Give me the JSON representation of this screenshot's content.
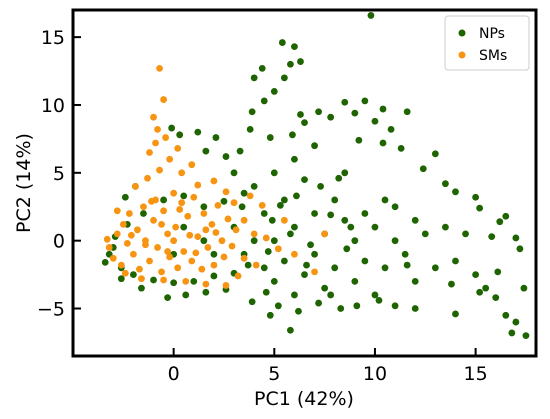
{
  "chart_data": {
    "type": "scatter",
    "title": "",
    "xlabel": "PC1 (42%)",
    "ylabel": "PC2 (14%)",
    "xlim": [
      -5,
      18
    ],
    "ylim": [
      -8.5,
      17
    ],
    "xticks": [
      0,
      5,
      10,
      15
    ],
    "yticks": [
      -5,
      0,
      5,
      10,
      15
    ],
    "xtick_labels": [
      "0",
      "5",
      "10",
      "15"
    ],
    "ytick_labels": [
      "−5",
      "0",
      "5",
      "10",
      "15"
    ],
    "grid": false,
    "legend_position": "top-right",
    "series": [
      {
        "name": "NPs",
        "color": "#1e6400",
        "points": [
          [
            -3.2,
            -1.0
          ],
          [
            -3.0,
            -0.5
          ],
          [
            -3.4,
            -1.6
          ],
          [
            -2.9,
            0.3
          ],
          [
            -2.6,
            -2.0
          ],
          [
            -2.3,
            1.2
          ],
          [
            -2.0,
            -2.5
          ],
          [
            -1.5,
            2.0
          ],
          [
            -1.0,
            -2.9
          ],
          [
            -0.5,
            3.0
          ],
          [
            0.0,
            -3.1
          ],
          [
            0.5,
            3.3
          ],
          [
            1.0,
            -3.0
          ],
          [
            1.5,
            2.5
          ],
          [
            2.0,
            -2.6
          ],
          [
            2.5,
            2.9
          ],
          [
            3.0,
            -2.4
          ],
          [
            3.5,
            3.5
          ],
          [
            3.0,
            1.0
          ],
          [
            3.5,
            -1.0
          ],
          [
            4.0,
            0.0
          ],
          [
            4.0,
            4.0
          ],
          [
            4.5,
            -2.0
          ],
          [
            4.5,
            2.0
          ],
          [
            5.0,
            5.0
          ],
          [
            5.0,
            0.0
          ],
          [
            5.0,
            -3.0
          ],
          [
            5.5,
            3.0
          ],
          [
            5.5,
            -1.5
          ],
          [
            6.0,
            6.0
          ],
          [
            6.0,
            1.0
          ],
          [
            6.0,
            -4.0
          ],
          [
            6.5,
            4.5
          ],
          [
            6.5,
            -2.5
          ],
          [
            7.0,
            2.0
          ],
          [
            7.0,
            -1.0
          ],
          [
            7.0,
            7.0
          ],
          [
            7.5,
            0.5
          ],
          [
            7.5,
            -3.5
          ],
          [
            8.0,
            3.0
          ],
          [
            8.0,
            -2.0
          ],
          [
            8.5,
            1.5
          ],
          [
            8.5,
            5.0
          ],
          [
            9.0,
            0.0
          ],
          [
            9.0,
            -3.0
          ],
          [
            9.5,
            2.0
          ],
          [
            9.5,
            -1.5
          ],
          [
            10.0,
            1.0
          ],
          [
            10.0,
            -4.0
          ],
          [
            10.5,
            3.0
          ],
          [
            10.5,
            -2.0
          ],
          [
            11.0,
            0.0
          ],
          [
            11.0,
            2.5
          ],
          [
            11.5,
            -1.0
          ],
          [
            12.0,
            1.5
          ],
          [
            12.0,
            -3.0
          ],
          [
            12.5,
            0.5
          ],
          [
            13.0,
            -2.0
          ],
          [
            13.5,
            1.0
          ],
          [
            14.0,
            -1.5
          ],
          [
            14.5,
            0.5
          ],
          [
            15.0,
            -2.5
          ],
          [
            15.5,
            -3.5
          ],
          [
            16.0,
            -4.2
          ],
          [
            16.5,
            -5.5
          ],
          [
            17.0,
            -6.0
          ],
          [
            17.5,
            -7.0
          ],
          [
            16.8,
            -6.8
          ],
          [
            15.2,
            -3.8
          ],
          [
            13.8,
            -3.2
          ],
          [
            3.9,
            -4.5
          ],
          [
            4.8,
            -5.5
          ],
          [
            5.2,
            -4.8
          ],
          [
            5.8,
            -6.6
          ],
          [
            6.2,
            -5.2
          ],
          [
            7.2,
            -4.6
          ],
          [
            8.3,
            -5.0
          ],
          [
            9.1,
            -4.8
          ],
          [
            10.2,
            -4.4
          ],
          [
            12.0,
            -5.0
          ],
          [
            3.9,
            9.5
          ],
          [
            4.5,
            10.3
          ],
          [
            5.0,
            11.0
          ],
          [
            5.5,
            12.0
          ],
          [
            5.8,
            13.0
          ],
          [
            6.0,
            14.3
          ],
          [
            5.4,
            14.6
          ],
          [
            6.3,
            13.2
          ],
          [
            4.0,
            12.0
          ],
          [
            4.4,
            12.7
          ],
          [
            6.5,
            8.7
          ],
          [
            7.2,
            9.5
          ],
          [
            7.8,
            9.1
          ],
          [
            8.5,
            10.2
          ],
          [
            9.0,
            9.4
          ],
          [
            9.5,
            10.3
          ],
          [
            10.0,
            8.8
          ],
          [
            10.4,
            9.7
          ],
          [
            10.8,
            8.2
          ],
          [
            11.6,
            9.5
          ],
          [
            3.8,
            8.2
          ],
          [
            4.8,
            7.6
          ],
          [
            5.9,
            7.8
          ],
          [
            6.3,
            9.3
          ],
          [
            9.2,
            7.4
          ],
          [
            10.4,
            7.2
          ],
          [
            11.3,
            6.8
          ],
          [
            13.0,
            6.4
          ],
          [
            12.4,
            5.3
          ],
          [
            13.5,
            4.2
          ],
          [
            14.0,
            3.6
          ],
          [
            15.0,
            3.2
          ],
          [
            15.2,
            2.4
          ],
          [
            16.2,
            1.4
          ],
          [
            16.5,
            1.8
          ],
          [
            17.0,
            0.2
          ],
          [
            17.2,
            -0.6
          ],
          [
            15.8,
            0.3
          ],
          [
            17.4,
            -3.5
          ],
          [
            16.1,
            -2.3
          ],
          [
            -0.3,
            -4.2
          ],
          [
            0.6,
            -4.0
          ],
          [
            1.6,
            -3.8
          ],
          [
            2.6,
            -3.6
          ],
          [
            -1.6,
            -3.5
          ],
          [
            -2.6,
            -2.8
          ],
          [
            1.2,
            8.0
          ],
          [
            2.1,
            7.6
          ],
          [
            0.3,
            7.8
          ],
          [
            -0.1,
            8.3
          ],
          [
            1.6,
            6.6
          ],
          [
            2.6,
            6.2
          ],
          [
            3.0,
            5.0
          ],
          [
            3.3,
            6.6
          ],
          [
            -2.4,
            3.2
          ],
          [
            -1.9,
            4.0
          ],
          [
            0.0,
            -1.0
          ],
          [
            0.5,
            1.0
          ],
          [
            1.5,
            0.0
          ],
          [
            2.0,
            -1.0
          ],
          [
            9.8,
            16.6
          ],
          [
            14.0,
            -5.4
          ],
          [
            11.0,
            -4.8
          ],
          [
            7.8,
            -4.0
          ],
          [
            4.6,
            -3.8
          ],
          [
            8.8,
            1.0
          ],
          [
            7.8,
            1.9
          ],
          [
            6.8,
            -0.3
          ],
          [
            5.8,
            0.5
          ],
          [
            4.9,
            1.5
          ],
          [
            3.4,
            2.5
          ],
          [
            5.3,
            2.6
          ],
          [
            6.1,
            3.3
          ],
          [
            7.3,
            4.0
          ],
          [
            8.2,
            4.6
          ],
          [
            3.7,
            -1.8
          ],
          [
            4.7,
            -0.8
          ],
          [
            6.6,
            -1.8
          ],
          [
            8.6,
            -0.6
          ],
          [
            11.6,
            -1.8
          ]
        ]
      },
      {
        "name": "SMs",
        "color": "#f79412",
        "points": [
          [
            -3.2,
            -0.5
          ],
          [
            -3.0,
            -1.3
          ],
          [
            -2.8,
            0.5
          ],
          [
            -2.6,
            -1.8
          ],
          [
            -2.5,
            1.2
          ],
          [
            -2.3,
            -0.2
          ],
          [
            -2.2,
            2.0
          ],
          [
            -2.0,
            -1.0
          ],
          [
            -1.8,
            0.8
          ],
          [
            -1.7,
            -2.1
          ],
          [
            -1.5,
            2.5
          ],
          [
            -1.4,
            0.0
          ],
          [
            -1.2,
            -1.5
          ],
          [
            -1.0,
            1.5
          ],
          [
            -0.9,
            3.0
          ],
          [
            -0.8,
            -0.5
          ],
          [
            -0.6,
            -2.3
          ],
          [
            -0.5,
            2.2
          ],
          [
            -0.3,
            0.5
          ],
          [
            -0.2,
            -1.2
          ],
          [
            0.0,
            3.5
          ],
          [
            0.1,
            1.0
          ],
          [
            0.2,
            -2.0
          ],
          [
            0.4,
            2.8
          ],
          [
            0.5,
            -0.8
          ],
          [
            0.7,
            1.8
          ],
          [
            0.9,
            -1.5
          ],
          [
            1.0,
            3.2
          ],
          [
            1.2,
            0.3
          ],
          [
            1.4,
            -2.1
          ],
          [
            1.5,
            2.0
          ],
          [
            1.7,
            -0.5
          ],
          [
            1.9,
            1.2
          ],
          [
            2.0,
            -1.8
          ],
          [
            2.2,
            2.6
          ],
          [
            2.4,
            0.0
          ],
          [
            2.5,
            -1.2
          ],
          [
            2.7,
            1.6
          ],
          [
            2.9,
            -0.4
          ],
          [
            3.1,
            0.8
          ],
          [
            -1.9,
            4.0
          ],
          [
            -1.3,
            4.6
          ],
          [
            -0.7,
            5.2
          ],
          [
            -0.2,
            6.0
          ],
          [
            0.4,
            5.0
          ],
          [
            -1.2,
            6.5
          ],
          [
            -0.9,
            7.2
          ],
          [
            -0.4,
            7.6
          ],
          [
            0.2,
            6.8
          ],
          [
            0.9,
            5.6
          ],
          [
            -0.8,
            8.2
          ],
          [
            -1.0,
            9.1
          ],
          [
            -0.5,
            10.4
          ],
          [
            -0.7,
            12.7
          ],
          [
            1.2,
            4.1
          ],
          [
            2.0,
            4.4
          ],
          [
            2.6,
            3.6
          ],
          [
            3.0,
            2.8
          ],
          [
            3.5,
            1.5
          ],
          [
            4.0,
            0.5
          ],
          [
            3.5,
            -1.3
          ],
          [
            4.1,
            -1.8
          ],
          [
            4.6,
            0.2
          ],
          [
            5.2,
            -0.6
          ],
          [
            3.2,
            -2.6
          ],
          [
            2.6,
            -3.3
          ],
          [
            1.6,
            -3.2
          ],
          [
            0.6,
            -3.0
          ],
          [
            -0.5,
            -2.9
          ],
          [
            -1.6,
            -2.8
          ],
          [
            6.0,
            -1.0
          ],
          [
            7.0,
            -2.3
          ],
          [
            7.5,
            0.5
          ],
          [
            5.5,
            1.5
          ],
          [
            4.4,
            2.6
          ],
          [
            3.8,
            3.3
          ],
          [
            -2.8,
            2.2
          ],
          [
            -3.3,
            0.1
          ],
          [
            -2.4,
            -2.4
          ],
          [
            -1.1,
            2.9
          ],
          [
            -0.3,
            -0.8
          ],
          [
            0.8,
            0.4
          ],
          [
            1.6,
            0.8
          ],
          [
            -1.4,
            -0.3
          ],
          [
            -2.1,
            0.4
          ],
          [
            0.3,
            2.3
          ],
          [
            1.1,
            -0.9
          ],
          [
            2.1,
            0.6
          ],
          [
            -0.6,
            1.2
          ],
          [
            0.0,
            0.0
          ]
        ]
      }
    ]
  }
}
